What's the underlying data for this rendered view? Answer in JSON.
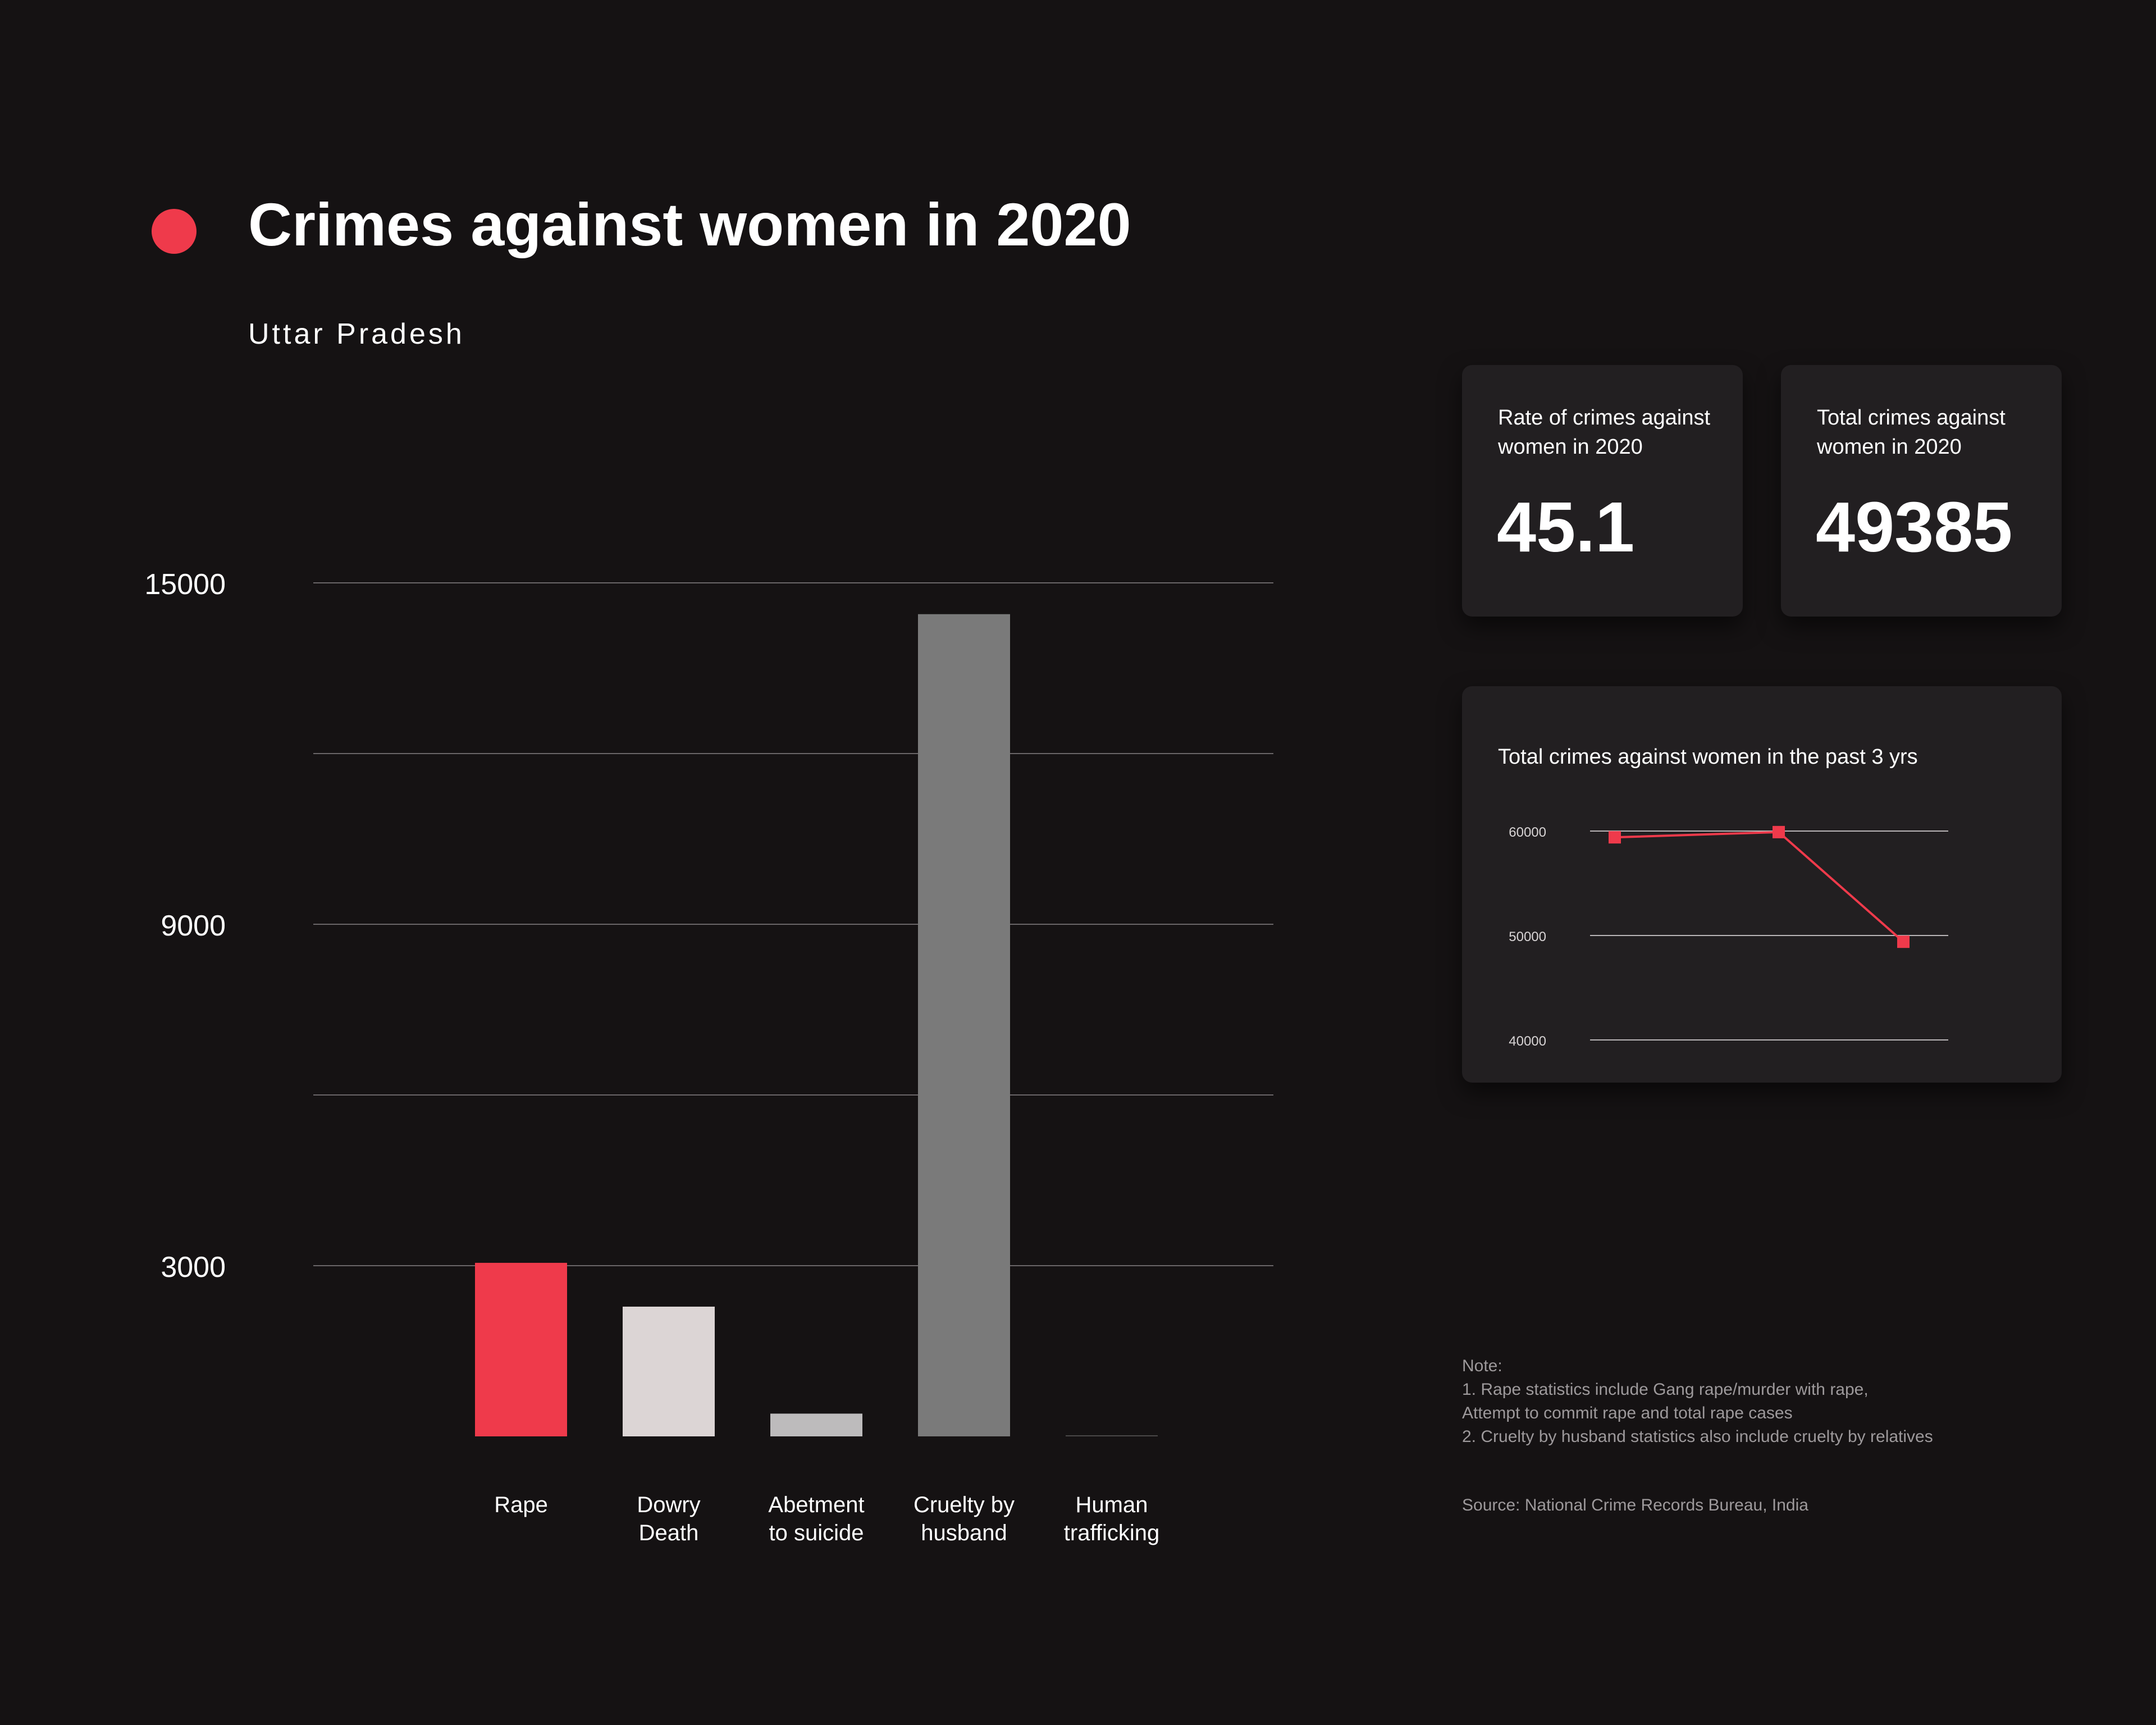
{
  "header": {
    "title": "Crimes against women in 2020",
    "subtitle": "Uttar Pradesh"
  },
  "colors": {
    "background": "#151213",
    "accent": "#ef3a4b",
    "card": "#221f21",
    "gridline": "#6a6668",
    "note_text": "#9d999b"
  },
  "stats": {
    "rate": {
      "label": "Rate of crimes against women in 2020",
      "value": "45.1"
    },
    "total": {
      "label": "Total crimes against women in 2020",
      "value": "49385"
    }
  },
  "trend": {
    "title": "Total crimes against women in the past 3 yrs"
  },
  "notes": {
    "heading": "Note:",
    "lines": [
      "1. Rape statistics include Gang rape/murder with rape,",
      "Attempt to commit rape and total rape cases",
      "2. Cruelty by husband statistics also include cruelty by relatives"
    ],
    "source": "Source: National Crime Records Bureau, India"
  },
  "chart_data": [
    {
      "type": "bar",
      "categories": [
        [
          "Rape"
        ],
        [
          "Dowry",
          "Death"
        ],
        [
          "Abetment",
          "to suicide"
        ],
        [
          "Cruelty by",
          "husband"
        ],
        [
          "Human",
          "trafficking"
        ]
      ],
      "values": [
        3050,
        2280,
        400,
        14450,
        20
      ],
      "colors": [
        "#ef3a4b",
        "#dcd5d5",
        "#bdbbbc",
        "#7a7a7a",
        "#4a4748"
      ],
      "ylim": [
        0,
        15000
      ],
      "gridlines": [
        3000,
        6000,
        9000,
        12000,
        15000
      ],
      "yticks": [
        3000,
        9000,
        15000
      ],
      "ytick_labels": [
        "3000",
        "9000",
        "15000"
      ],
      "grid": true,
      "legend": "none"
    },
    {
      "type": "line",
      "x": [
        "",
        "",
        ""
      ],
      "values": [
        59400,
        59900,
        49400
      ],
      "color": "#ef3a4b",
      "ylim": [
        40000,
        60000
      ],
      "yticks": [
        40000,
        50000,
        60000
      ],
      "ytick_labels": [
        "40000",
        "50000",
        "60000"
      ],
      "grid": true,
      "legend": "none"
    }
  ]
}
